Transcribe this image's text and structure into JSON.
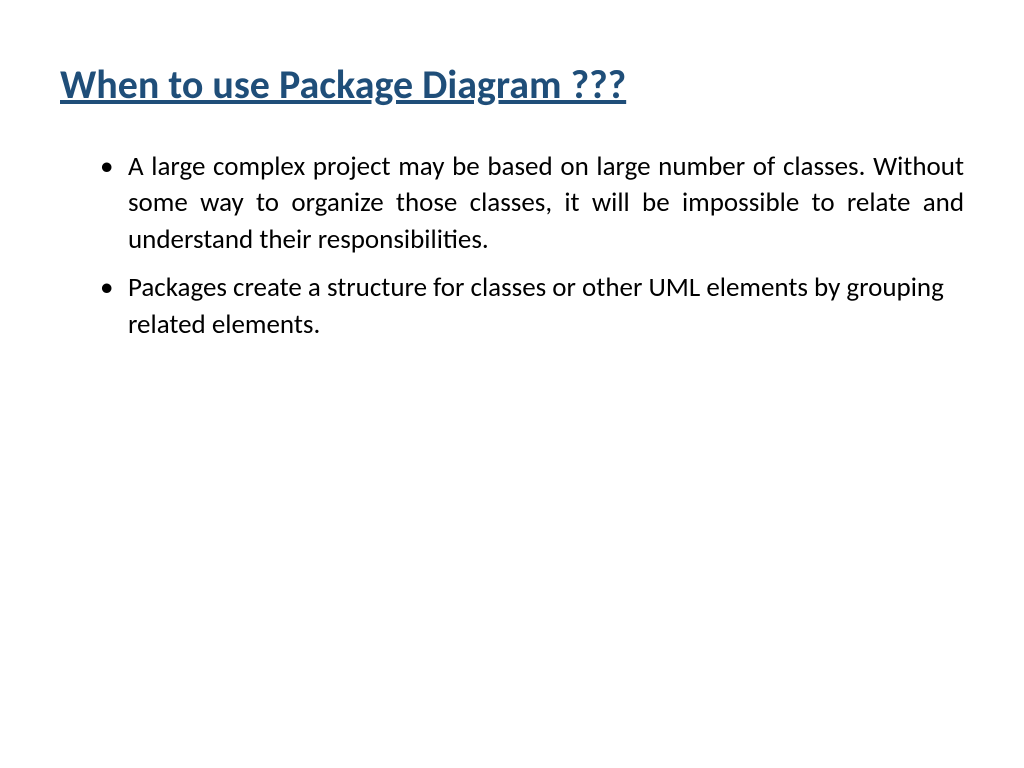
{
  "slide": {
    "title": "When to use Package Diagram ???",
    "title_color": "#1f4e79",
    "title_fontsize": 40,
    "bullets": [
      {
        "text": "A large complex project may be based on large number of classes. Without some way to organize those classes, it will be impossible to relate and understand their responsibilities.",
        "justified": true
      },
      {
        "text": "Packages create a structure for classes or other UML elements by grouping related elements.",
        "justified": false
      }
    ],
    "body_color": "#000000",
    "body_fontsize": 27,
    "background_color": "#ffffff"
  }
}
